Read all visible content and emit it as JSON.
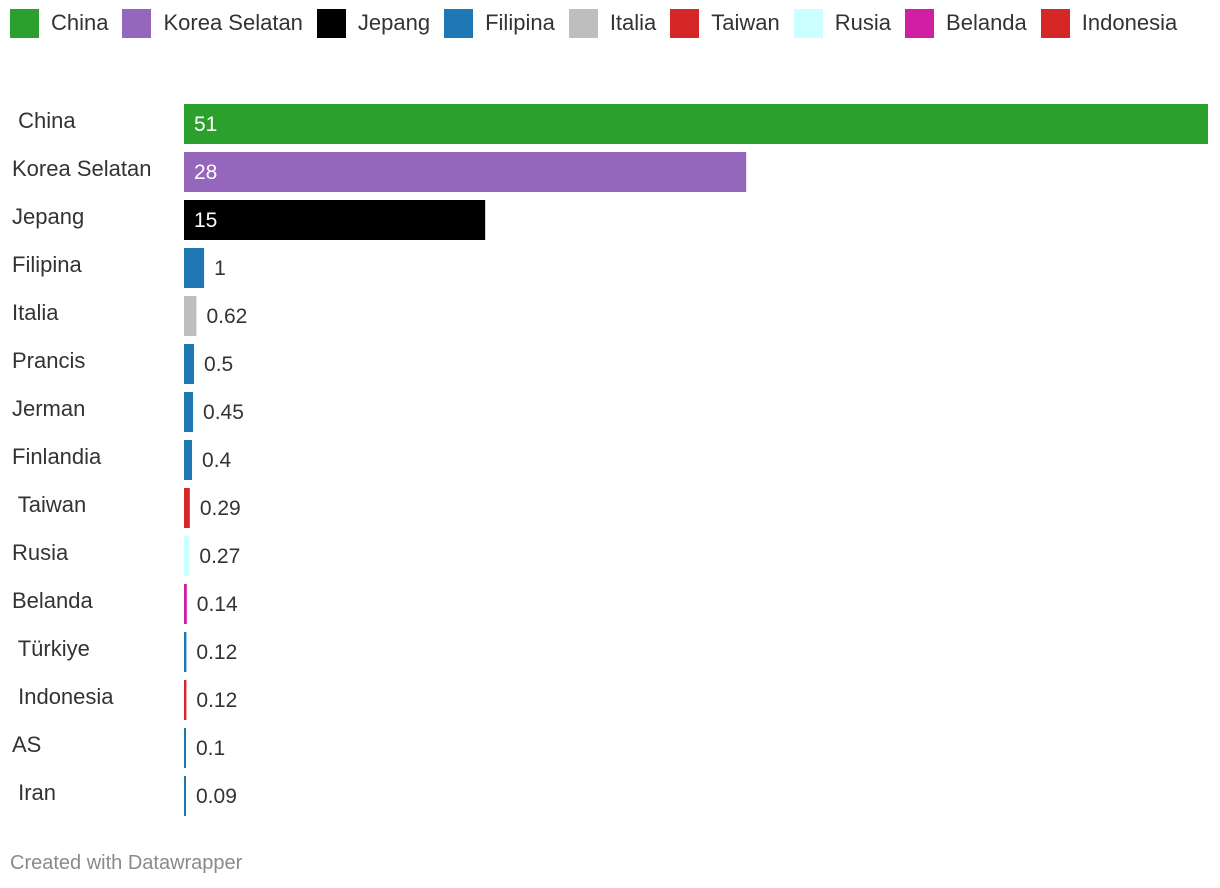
{
  "chart_data": {
    "type": "bar",
    "orientation": "horizontal",
    "categories": [
      "China",
      "Korea Selatan",
      "Jepang",
      "Filipina",
      "Italia",
      "Prancis",
      "Jerman",
      "Finlandia",
      "Taiwan",
      "Rusia",
      "Belanda",
      "Türkiye",
      "Indonesia",
      "AS",
      "Iran"
    ],
    "category_labels": [
      " China",
      "Korea Selatan",
      "Jepang",
      "Filipina",
      "Italia",
      "Prancis",
      "Jerman",
      "Finlandia",
      " Taiwan",
      "Rusia",
      "Belanda",
      " Türkiye",
      " Indonesia",
      "AS",
      " Iran"
    ],
    "values": [
      51,
      28,
      15,
      1,
      0.62,
      0.5,
      0.45,
      0.4,
      0.29,
      0.27,
      0.14,
      0.12,
      0.12,
      0.1,
      0.09
    ],
    "value_labels": [
      "51",
      "28",
      "15",
      "1",
      "0.62",
      "0.5",
      "0.45",
      "0.4",
      "0.29",
      "0.27",
      "0.14",
      "0.12",
      "0.12",
      "0.1",
      "0.09"
    ],
    "bar_colors": [
      "#2ca02c",
      "#9467bd",
      "#000000",
      "#1f77b4",
      "#bebebe",
      "#1f77b4",
      "#1f77b4",
      "#1f77b4",
      "#d62728",
      "#ccffff",
      "#d01fa3",
      "#1f77b4",
      "#d62728",
      "#1f77b4",
      "#1f77b4"
    ],
    "xlim": [
      0,
      51
    ],
    "legend": {
      "position": "top",
      "entries": [
        {
          "label": "China",
          "color": "#2ca02c"
        },
        {
          "label": "Korea Selatan",
          "color": "#9467bd"
        },
        {
          "label": "Jepang",
          "color": "#000000"
        },
        {
          "label": "Filipina",
          "color": "#1f77b4"
        },
        {
          "label": "Italia",
          "color": "#bebebe"
        },
        {
          "label": "Taiwan",
          "color": "#d62728"
        },
        {
          "label": "Rusia",
          "color": "#ccffff"
        },
        {
          "label": "Belanda",
          "color": "#d01fa3"
        },
        {
          "label": "Indonesia",
          "color": "#d62728"
        }
      ]
    },
    "grid": false
  },
  "footer": {
    "credit": "Created with Datawrapper"
  }
}
